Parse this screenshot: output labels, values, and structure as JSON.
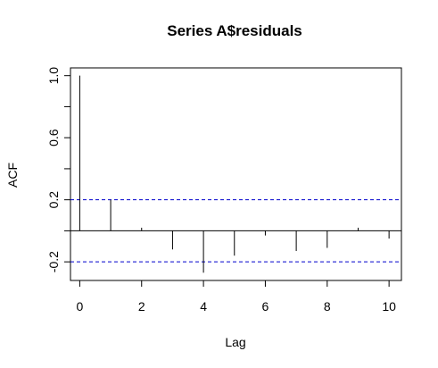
{
  "chart_data": {
    "type": "bar",
    "title": "Series  A$residuals",
    "xlabel": "Lag",
    "ylabel": "ACF",
    "x": [
      0,
      1,
      2,
      3,
      4,
      5,
      6,
      7,
      8,
      9,
      10
    ],
    "values": [
      1.0,
      0.2,
      0.02,
      -0.12,
      -0.27,
      -0.16,
      -0.03,
      -0.13,
      -0.11,
      0.02,
      -0.05
    ],
    "xlim": [
      -0.3,
      10.4
    ],
    "ylim": [
      -0.32,
      1.05
    ],
    "x_ticks": [
      0,
      2,
      4,
      6,
      8,
      10
    ],
    "x_tick_labels": [
      "0",
      "2",
      "4",
      "6",
      "8",
      "10"
    ],
    "y_ticks": [
      -0.2,
      0.2,
      0.6,
      1.0
    ],
    "y_tick_labels": [
      "-0.2",
      "0.2",
      "0.6",
      "1.0"
    ],
    "y_minor_ticks": [
      0.0,
      0.4,
      0.8
    ],
    "confidence_bounds": [
      0.2,
      -0.2
    ],
    "confidence_color": "#0000cd",
    "zero_line": true,
    "grid": false,
    "legend": "none"
  }
}
